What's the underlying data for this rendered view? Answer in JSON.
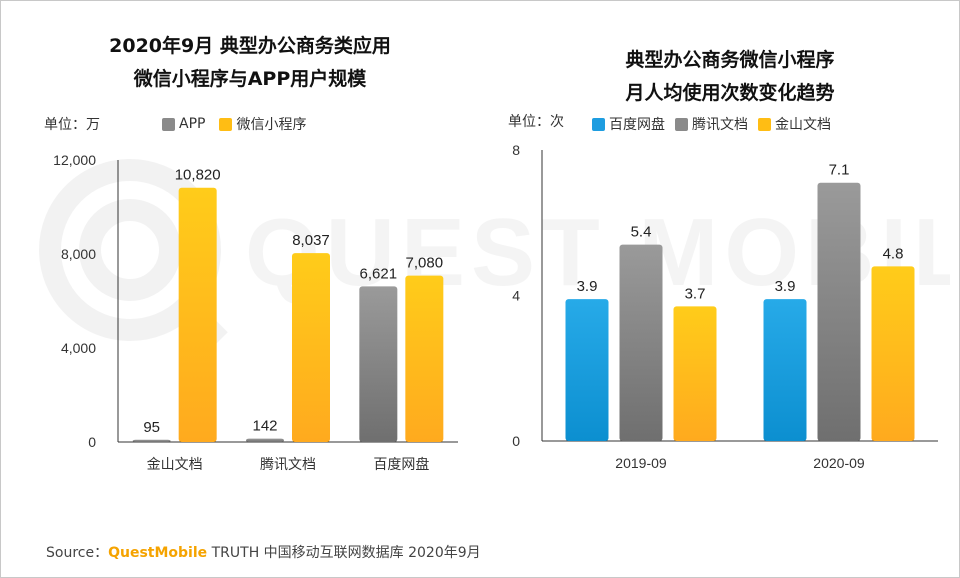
{
  "colors": {
    "app": "#8a8a8a",
    "mini": "#ffbd14",
    "baidu": "#1e9de0",
    "tencent": "#8a8a8a",
    "kingsoft": "#ffbd14",
    "brand": "#f5a300"
  },
  "watermark_text": "QUEST MOBILE",
  "source": {
    "label": "Source：",
    "brand": "QuestMobile",
    "rest": "TRUTH 中国移动互联网数据库 2020年9月"
  },
  "chart_data": [
    {
      "type": "bar",
      "title_lines": [
        "2020年9月 典型办公商务类应用",
        "微信小程序与APP用户规模"
      ],
      "unit": "单位：万",
      "legend": [
        "APP",
        "微信小程序"
      ],
      "categories": [
        "金山文档",
        "腾讯文档",
        "百度网盘"
      ],
      "series": [
        {
          "name": "APP",
          "values": [
            95,
            142,
            6621
          ],
          "labels": [
            "95",
            "142",
            "6,621"
          ]
        },
        {
          "name": "微信小程序",
          "values": [
            10820,
            8037,
            7080
          ],
          "labels": [
            "10,820",
            "8,037",
            "7,080"
          ]
        }
      ],
      "yticks": [
        "0",
        "4,000",
        "8,000",
        "12,000"
      ],
      "ylim": [
        0,
        12000
      ]
    },
    {
      "type": "bar",
      "title_lines": [
        "典型办公商务微信小程序",
        "月人均使用次数变化趋势"
      ],
      "unit": "单位：次",
      "legend": [
        "百度网盘",
        "腾讯文档",
        "金山文档"
      ],
      "categories": [
        "2019-09",
        "2020-09"
      ],
      "series": [
        {
          "name": "百度网盘",
          "values": [
            3.9,
            3.9
          ],
          "labels": [
            "3.9",
            "3.9"
          ]
        },
        {
          "name": "腾讯文档",
          "values": [
            5.4,
            7.1
          ],
          "labels": [
            "5.4",
            "7.1"
          ]
        },
        {
          "name": "金山文档",
          "values": [
            3.7,
            4.8
          ],
          "labels": [
            "3.7",
            "4.8"
          ]
        }
      ],
      "yticks": [
        "0",
        "4",
        "8"
      ],
      "ylim": [
        0,
        8
      ]
    }
  ]
}
